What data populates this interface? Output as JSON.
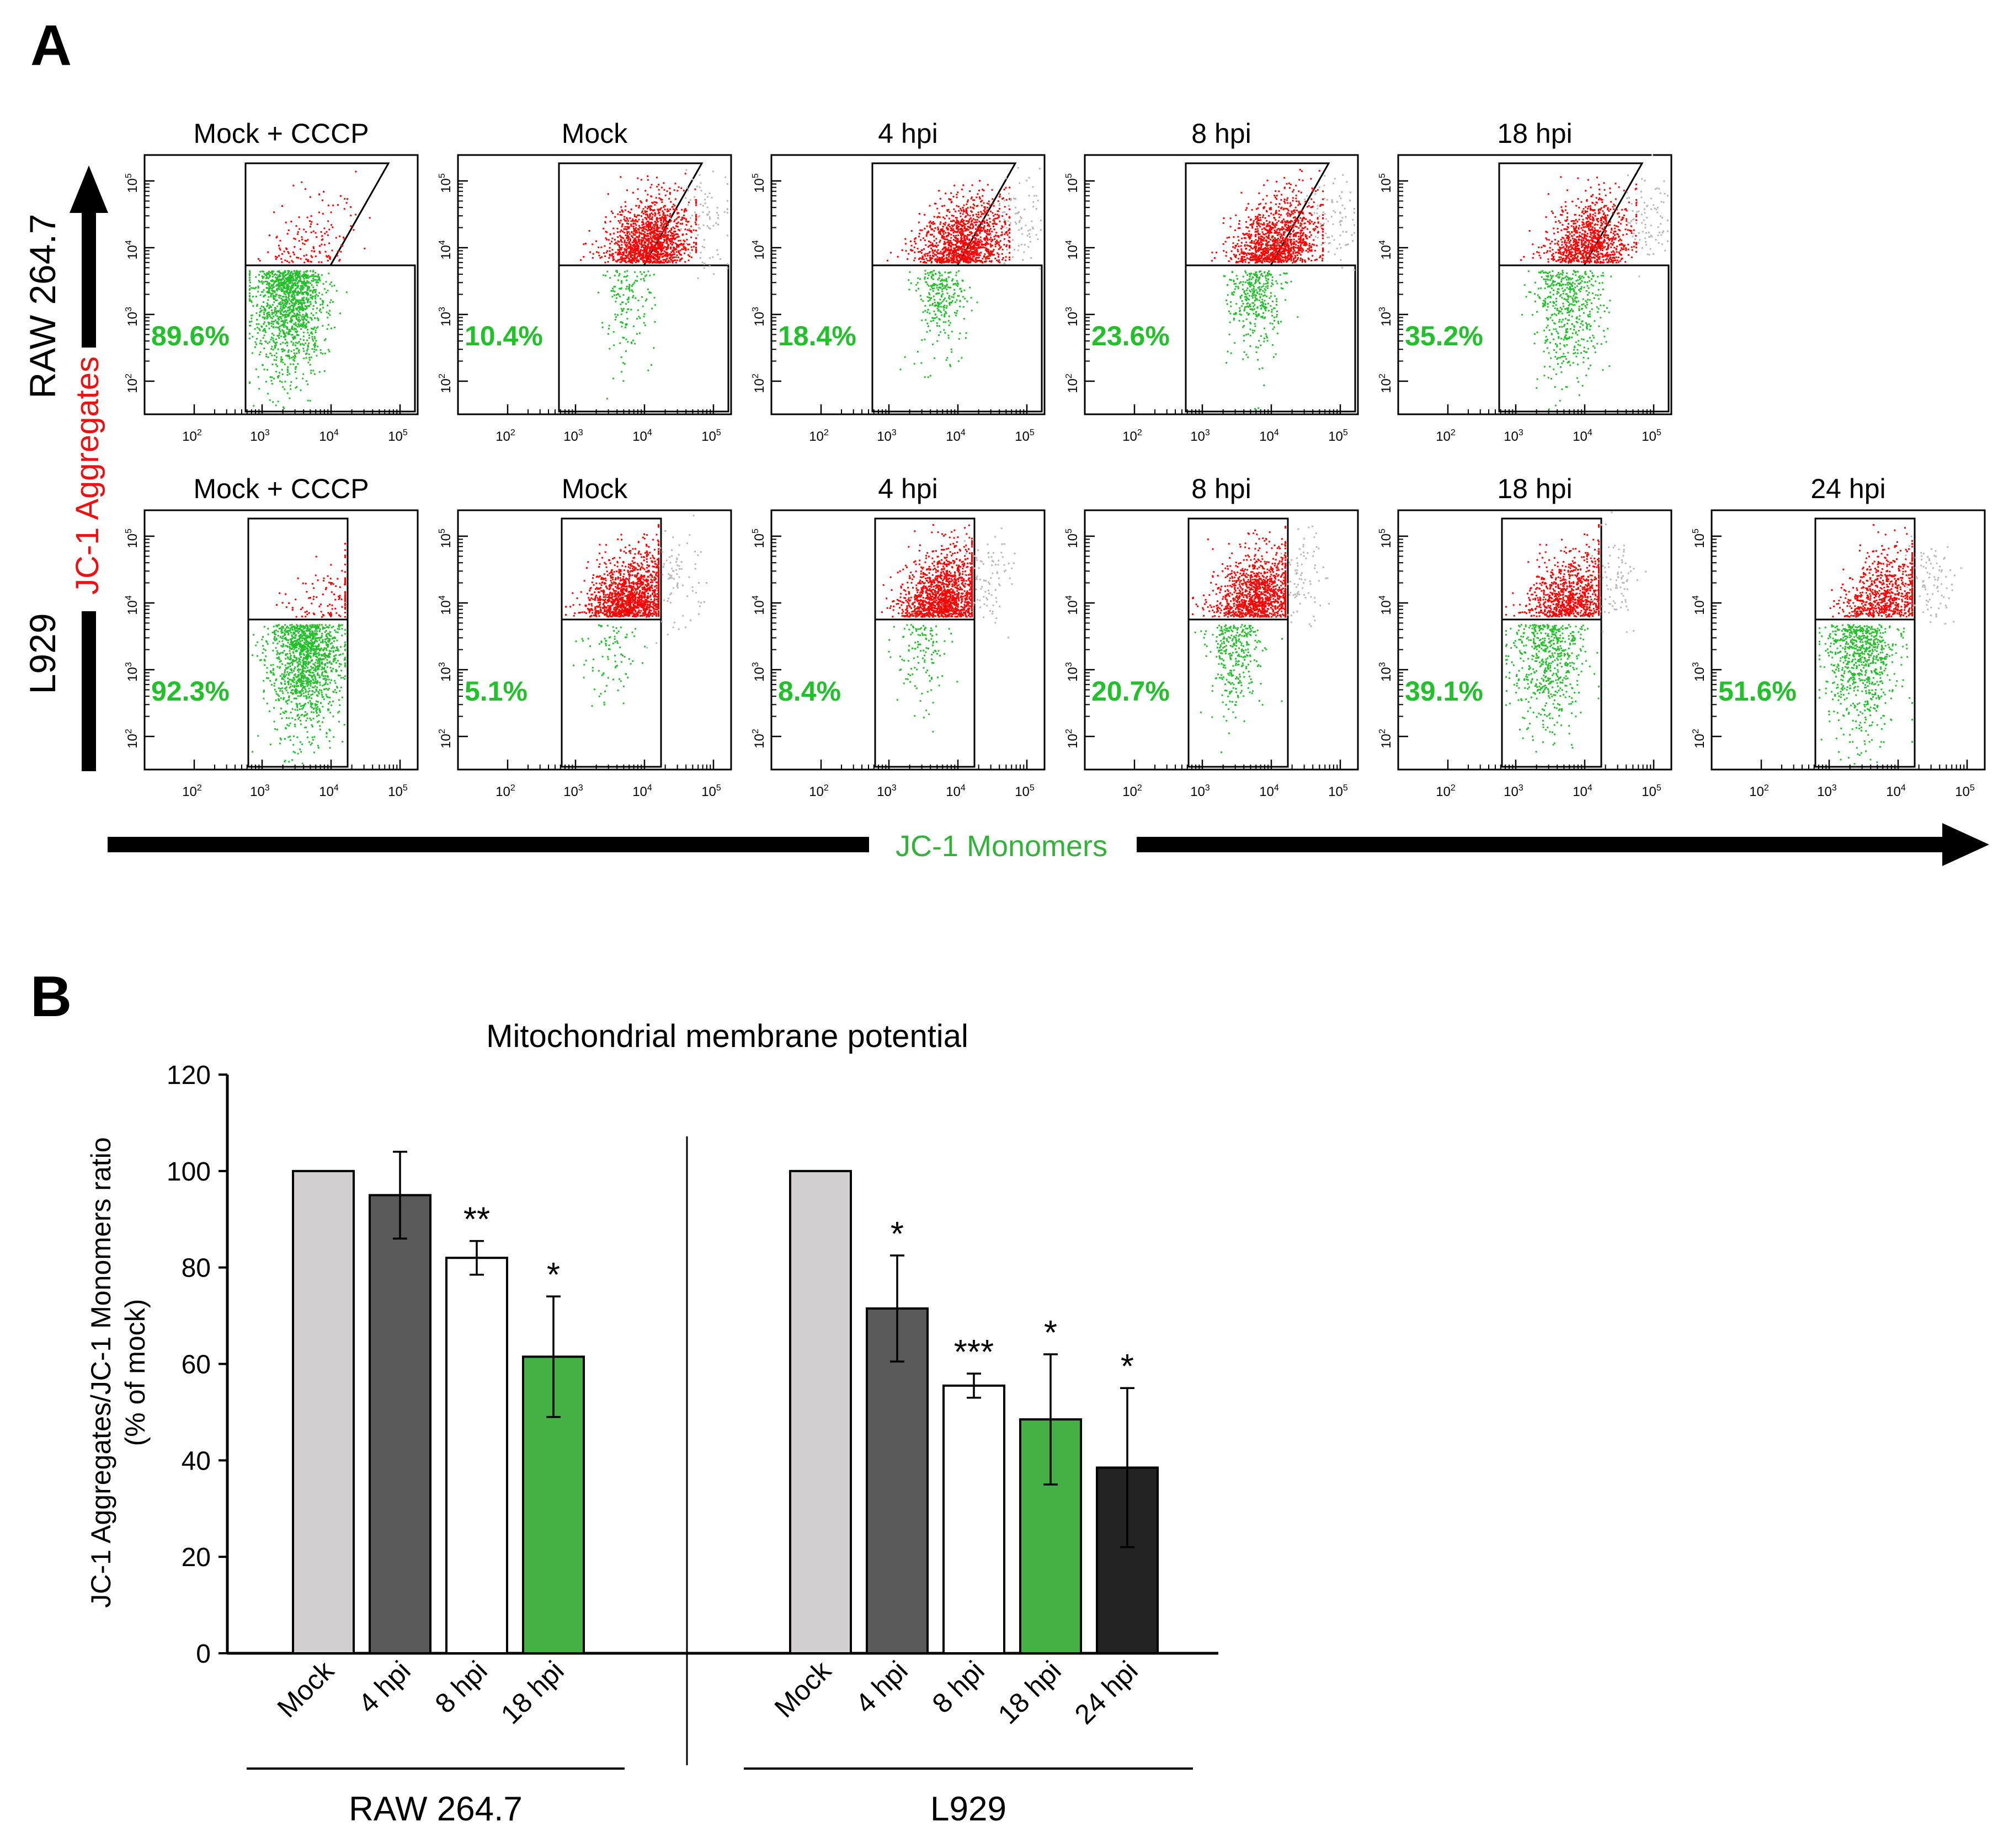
{
  "panel_a": {
    "label": "A",
    "y_axis_label": "JC-1 Aggregates",
    "x_axis_label": "JC-1 Monomers",
    "colors": {
      "aggregates": "#ff0000",
      "monomers": "#22c02a",
      "other": "#b8b8b8",
      "axis_label_red": "#ee1111",
      "axis_label_green": "#33b33a"
    },
    "tick_exponents": [
      "2",
      "3",
      "4",
      "5"
    ],
    "tick_base": "10",
    "rows": [
      {
        "cell_line": "RAW 264.7",
        "gate": "trapezoid",
        "plots": [
          {
            "title": "Mock + CCCP",
            "monomer_percent": "89.6%"
          },
          {
            "title": "Mock",
            "monomer_percent": "10.4%"
          },
          {
            "title": "4 hpi",
            "monomer_percent": "18.4%"
          },
          {
            "title": "8 hpi",
            "monomer_percent": "23.6%"
          },
          {
            "title": "18 hpi",
            "monomer_percent": "35.2%"
          }
        ]
      },
      {
        "cell_line": "L929",
        "gate": "rectangle",
        "plots": [
          {
            "title": "Mock + CCCP",
            "monomer_percent": "92.3%"
          },
          {
            "title": "Mock",
            "monomer_percent": "5.1%"
          },
          {
            "title": "4 hpi",
            "monomer_percent": "8.4%"
          },
          {
            "title": "8 hpi",
            "monomer_percent": "20.7%"
          },
          {
            "title": "18 hpi",
            "monomer_percent": "39.1%"
          },
          {
            "title": "24 hpi",
            "monomer_percent": "51.6%"
          }
        ]
      }
    ]
  },
  "panel_b": {
    "label": "B"
  },
  "chart_data": {
    "type": "bar",
    "title": "Mitochondrial membrane potential",
    "ylabel_line1": "JC-1 Aggregates/JC-1 Monomers ratio",
    "ylabel_line2": "(% of mock)",
    "ylim": [
      0,
      120
    ],
    "yticks": [
      0,
      20,
      40,
      60,
      80,
      100,
      120
    ],
    "groups": [
      {
        "name": "RAW 264.7",
        "bars": [
          {
            "category": "Mock",
            "value": 100,
            "error": 0,
            "color": "#d3cfd0",
            "sig": ""
          },
          {
            "category": "4 hpi",
            "value": 95,
            "error": 9,
            "color": "#595959",
            "sig": ""
          },
          {
            "category": "8 hpi",
            "value": 82,
            "error": 3.5,
            "color": "#ffffff",
            "sig": "**"
          },
          {
            "category": "18 hpi",
            "value": 61.5,
            "error": 12.5,
            "color": "#45b043",
            "sig": "*"
          }
        ]
      },
      {
        "name": "L929",
        "bars": [
          {
            "category": "Mock",
            "value": 100,
            "error": 0,
            "color": "#d3cfd0",
            "sig": ""
          },
          {
            "category": "4 hpi",
            "value": 71.5,
            "error": 11,
            "color": "#595959",
            "sig": "*"
          },
          {
            "category": "8 hpi",
            "value": 55.5,
            "error": 2.5,
            "color": "#ffffff",
            "sig": "***"
          },
          {
            "category": "18 hpi",
            "value": 48.5,
            "error": 13.5,
            "color": "#45b043",
            "sig": "*"
          },
          {
            "category": "24 hpi",
            "value": 38.5,
            "error": 16.5,
            "color": "#222222",
            "sig": "*"
          }
        ]
      }
    ]
  }
}
